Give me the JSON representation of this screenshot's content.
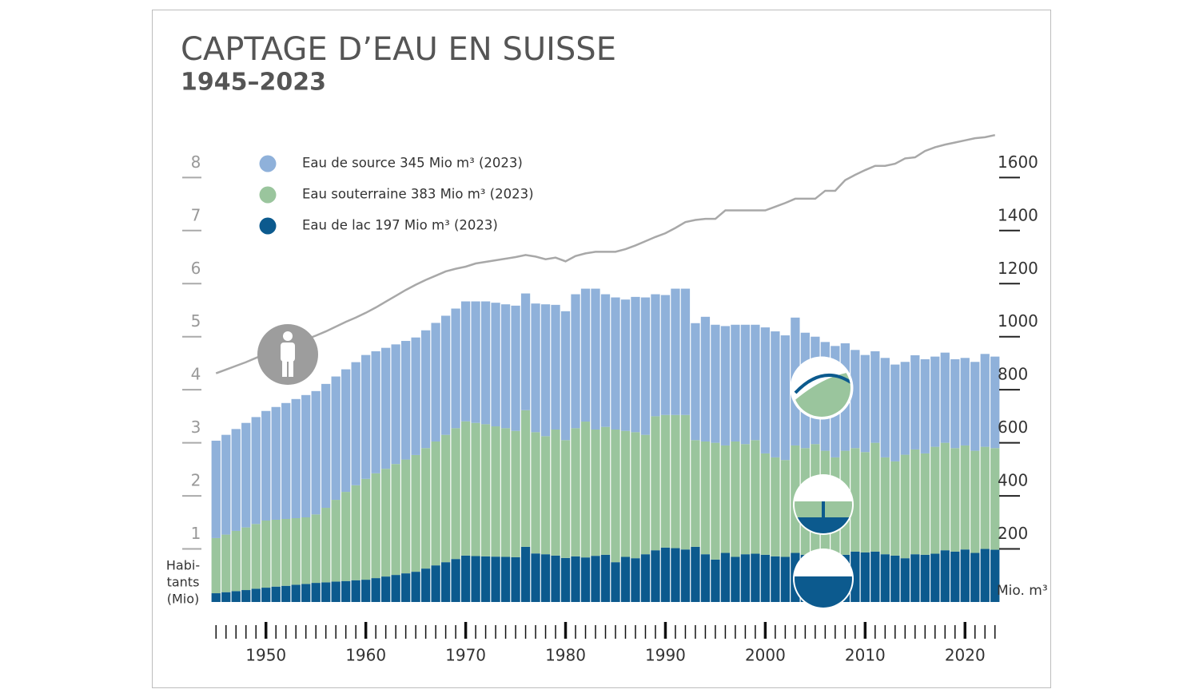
{
  "chart_data": {
    "type": "stacked_bar",
    "title": "CAPTAGE D’EAU EN SUISSE",
    "subtitle": "1945–2023",
    "ylabel": "Mio. m³",
    "y2label": [
      "Habi-",
      "tants",
      "(Mio)"
    ],
    "x": [
      1945,
      1946,
      1947,
      1948,
      1949,
      1950,
      1951,
      1952,
      1953,
      1954,
      1955,
      1956,
      1957,
      1958,
      1959,
      1960,
      1961,
      1962,
      1963,
      1964,
      1965,
      1966,
      1967,
      1968,
      1969,
      1970,
      1971,
      1972,
      1973,
      1974,
      1975,
      1976,
      1977,
      1978,
      1979,
      1980,
      1981,
      1982,
      1983,
      1984,
      1985,
      1986,
      1987,
      1988,
      1989,
      1990,
      1991,
      1992,
      1993,
      1994,
      1995,
      1996,
      1997,
      1998,
      1999,
      2000,
      2001,
      2002,
      2003,
      2004,
      2005,
      2006,
      2007,
      2008,
      2009,
      2010,
      2011,
      2012,
      2013,
      2014,
      2015,
      2016,
      2017,
      2018,
      2019,
      2020,
      2021,
      2022,
      2023
    ],
    "xlim": [
      1944.5,
      2023.5
    ],
    "xticks": [
      1950,
      1960,
      1970,
      1980,
      1990,
      2000,
      2010,
      2020
    ],
    "ylim": [
      0,
      1750
    ],
    "yticks": [
      200,
      400,
      600,
      800,
      1000,
      1200,
      1400,
      1600
    ],
    "y2lim": [
      0,
      8.75
    ],
    "y2ticks": [
      1,
      2,
      3,
      4,
      5,
      6,
      7,
      8
    ],
    "series": [
      {
        "name": "Eau de source 345 Mio m³ (2023)",
        "color": "#8fb1da",
        "values": [
          367,
          376,
          384,
          394,
          403,
          413,
          425,
          437,
          449,
          461,
          465,
          467,
          465,
          462,
          464,
          467,
          460,
          456,
          451,
          447,
          443,
          444,
          447,
          449,
          451,
          452,
          458,
          463,
          466,
          467,
          472,
          440,
          485,
          497,
          470,
          486,
          505,
          501,
          531,
          500,
          498,
          495,
          510,
          518,
          460,
          452,
          476,
          476,
          441,
          470,
          445,
          450,
          440,
          450,
          435,
          475,
          475,
          470,
          482,
          435,
          405,
          410,
          420,
          405,
          370,
          366,
          345,
          375,
          365,
          350,
          355,
          355,
          340,
          340,
          335,
          330,
          335,
          350,
          345
        ]
      },
      {
        "name": "Eau souterraine 383 Mio m³ (2023)",
        "color": "#9ac59d",
        "values": [
          208,
          217,
          227,
          236,
          244,
          253,
          252,
          252,
          251,
          251,
          258,
          281,
          308,
          336,
          358,
          380,
          395,
          406,
          418,
          429,
          440,
          454,
          467,
          480,
          493,
          506,
          502,
          498,
          491,
          485,
          476,
          515,
          457,
          445,
          475,
          444,
          483,
          512,
          476,
          482,
          500,
          475,
          475,
          450,
          505,
          500,
          502,
          507,
          402,
          425,
          440,
          405,
          435,
          415,
          428,
          382,
          373,
          365,
          405,
          402,
          413,
          395,
          365,
          392,
          390,
          378,
          410,
          365,
          355,
          390,
          395,
          382,
          403,
          405,
          390,
          392,
          385,
          385,
          383
        ]
      },
      {
        "name": "Eau de lac 197 Mio m³ (2023)",
        "color": "#0c5a8e",
        "values": [
          33,
          37,
          41,
          45,
          50,
          54,
          58,
          61,
          65,
          68,
          72,
          74,
          77,
          79,
          82,
          84,
          90,
          96,
          102,
          108,
          114,
          126,
          138,
          150,
          162,
          175,
          173,
          172,
          171,
          170,
          169,
          208,
          183,
          180,
          175,
          166,
          172,
          168,
          174,
          178,
          150,
          170,
          165,
          180,
          195,
          205,
          203,
          198,
          208,
          180,
          160,
          185,
          170,
          180,
          182,
          178,
          172,
          170,
          185,
          178,
          182,
          175,
          180,
          178,
          190,
          187,
          190,
          180,
          175,
          165,
          180,
          178,
          182,
          195,
          190,
          198,
          185,
          200,
          197
        ]
      },
      {
        "axis": "y2",
        "color": "#a8a8a8",
        "values": [
          4.31,
          4.38,
          4.45,
          4.52,
          4.6,
          4.68,
          4.75,
          4.82,
          4.89,
          4.95,
          5.02,
          5.1,
          5.19,
          5.28,
          5.36,
          5.45,
          5.55,
          5.66,
          5.77,
          5.88,
          5.98,
          6.07,
          6.15,
          6.23,
          6.28,
          6.32,
          6.38,
          6.41,
          6.44,
          6.47,
          6.5,
          6.54,
          6.51,
          6.46,
          6.49,
          6.42,
          6.52,
          6.57,
          6.6,
          6.6,
          6.6,
          6.65,
          6.72,
          6.8,
          6.88,
          6.95,
          7.05,
          7.16,
          7.2,
          7.22,
          7.22,
          7.38,
          7.38,
          7.38,
          7.38,
          7.38,
          7.45,
          7.52,
          7.6,
          7.6,
          7.6,
          7.75,
          7.75,
          7.95,
          8.05,
          8.14,
          8.22,
          8.22,
          8.26,
          8.36,
          8.38,
          8.5,
          8.57,
          8.62,
          8.66,
          8.7,
          8.74,
          8.76,
          8.8
        ]
      }
    ]
  }
}
